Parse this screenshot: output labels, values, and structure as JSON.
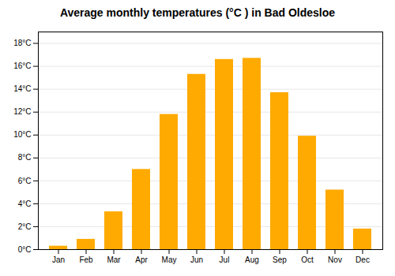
{
  "chart_data": {
    "type": "bar",
    "title": "Average monthly temperatures (°C ) in Bad Oldesloe",
    "categories": [
      "Jan",
      "Feb",
      "Mar",
      "Apr",
      "May",
      "Jun",
      "Jul",
      "Aug",
      "Sep",
      "Oct",
      "Nov",
      "Dec"
    ],
    "values": [
      0.3,
      0.9,
      3.3,
      7.0,
      11.8,
      15.3,
      16.6,
      16.7,
      13.7,
      9.9,
      5.2,
      1.8
    ],
    "color": "#FFAA00",
    "ylim": [
      0,
      19
    ],
    "yticks": [
      {
        "value": 0,
        "label": "0°C"
      },
      {
        "value": 2,
        "label": "2°C"
      },
      {
        "value": 4,
        "label": "4°C"
      },
      {
        "value": 6,
        "label": "6°C"
      },
      {
        "value": 8,
        "label": "8°C"
      },
      {
        "value": 10,
        "label": "10°C"
      },
      {
        "value": 12,
        "label": "12°C"
      },
      {
        "value": 14,
        "label": "14°C"
      },
      {
        "value": 16,
        "label": "16°C"
      },
      {
        "value": 18,
        "label": "18°C"
      }
    ],
    "grid": true
  }
}
